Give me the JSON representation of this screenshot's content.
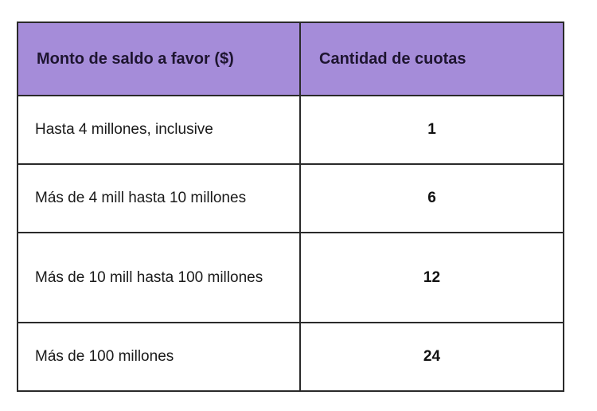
{
  "table": {
    "headers": [
      "Monto de saldo a favor ($)",
      "Cantidad de cuotas"
    ],
    "rows": [
      {
        "amount": "Hasta 4 millones, inclusive",
        "quotas": "1"
      },
      {
        "amount": "Más de 4 mill hasta 10 millones",
        "quotas": "6"
      },
      {
        "amount": "Más de 10 mill hasta 100 millones",
        "quotas": "12"
      },
      {
        "amount": "Más de 100 millones",
        "quotas": "24"
      }
    ]
  },
  "colors": {
    "header_bg": "#a58cd9",
    "border": "#2a2a2a"
  }
}
